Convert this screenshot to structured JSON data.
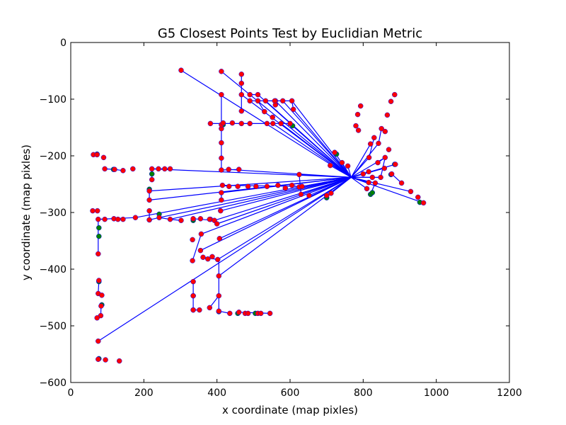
{
  "chart_data": {
    "type": "scatter",
    "title": "G5 Closest Points Test by Euclidian Metric",
    "xlabel": "x coordinate (map pixles)",
    "ylabel": "y coordinate (map pixles)",
    "xlim": [
      0,
      1200
    ],
    "ylim": [
      -600,
      0
    ],
    "xticks": [
      0,
      200,
      400,
      600,
      800,
      1000,
      1200
    ],
    "yticks": [
      0,
      -100,
      -200,
      -300,
      -400,
      -500,
      -600
    ],
    "xtick_labels": [
      "0",
      "200",
      "400",
      "600",
      "800",
      "1000",
      "1200"
    ],
    "ytick_labels": [
      "0",
      "−100",
      "−200",
      "−300",
      "−400",
      "−500",
      "−600"
    ],
    "grid": false,
    "hub": [
      767,
      -238
    ],
    "colors": {
      "line": "#0000ff",
      "red": "#ff0000",
      "green": "#008000",
      "edge": "#0000ff"
    },
    "series": [
      {
        "values": [
          [
            62,
            -198
          ],
          [
            72,
            -198
          ],
          [
            90,
            -203
          ],
          [
            93,
            -223
          ],
          [
            120,
            -224
          ],
          [
            143,
            -226
          ],
          [
            170,
            -223
          ],
          [
            222,
            -223
          ],
          [
            240,
            -223
          ],
          [
            257,
            -223
          ],
          [
            272,
            -223
          ],
          [
            222,
            -242
          ],
          [
            215,
            -262
          ],
          [
            215,
            -278
          ],
          [
            215,
            -297
          ],
          [
            215,
            -313
          ],
          [
            242,
            -309
          ],
          [
            272,
            -312
          ],
          [
            302,
            -314
          ],
          [
            335,
            -311
          ],
          [
            355,
            -311
          ],
          [
            382,
            -312
          ],
          [
            393,
            -314
          ],
          [
            60,
            -297
          ],
          [
            73,
            -297
          ],
          [
            75,
            -312
          ],
          [
            93,
            -312
          ],
          [
            118,
            -311
          ],
          [
            129,
            -312
          ],
          [
            143,
            -312
          ],
          [
            177,
            -309
          ],
          [
            75,
            -373
          ],
          [
            77,
            -420
          ],
          [
            75,
            -443
          ],
          [
            85,
            -446
          ],
          [
            83,
            -465
          ],
          [
            82,
            -482
          ],
          [
            72,
            -486
          ],
          [
            75,
            -527
          ],
          [
            75,
            -559
          ],
          [
            95,
            -560
          ],
          [
            133,
            -562
          ],
          [
            302,
            -49
          ],
          [
            412,
            -51
          ],
          [
            467,
            -56
          ],
          [
            467,
            -72
          ],
          [
            412,
            -92
          ],
          [
            467,
            -92
          ],
          [
            490,
            -92
          ],
          [
            512,
            -92
          ],
          [
            490,
            -103
          ],
          [
            512,
            -103
          ],
          [
            533,
            -103
          ],
          [
            560,
            -103
          ],
          [
            580,
            -103
          ],
          [
            605,
            -103
          ],
          [
            609,
            -118
          ],
          [
            530,
            -122
          ],
          [
            467,
            -121
          ],
          [
            412,
            -152
          ],
          [
            412,
            -145
          ],
          [
            412,
            -177
          ],
          [
            412,
            -204
          ],
          [
            412,
            -225
          ],
          [
            432,
            -224
          ],
          [
            460,
            -224
          ],
          [
            382,
            -143
          ],
          [
            417,
            -142
          ],
          [
            442,
            -142
          ],
          [
            467,
            -143
          ],
          [
            490,
            -143
          ],
          [
            537,
            -143
          ],
          [
            553,
            -143
          ],
          [
            575,
            -143
          ],
          [
            600,
            -143
          ],
          [
            415,
            -252
          ],
          [
            433,
            -254
          ],
          [
            457,
            -254
          ],
          [
            485,
            -254
          ],
          [
            507,
            -254
          ],
          [
            537,
            -254
          ],
          [
            567,
            -252
          ],
          [
            587,
            -257
          ],
          [
            605,
            -252
          ],
          [
            625,
            -255
          ],
          [
            633,
            -254
          ],
          [
            625,
            -233
          ],
          [
            630,
            -268
          ],
          [
            652,
            -270
          ],
          [
            700,
            -270
          ],
          [
            712,
            -266
          ],
          [
            412,
            -265
          ],
          [
            412,
            -278
          ],
          [
            410,
            -297
          ],
          [
            380,
            -312
          ],
          [
            400,
            -320
          ],
          [
            357,
            -338
          ],
          [
            333,
            -348
          ],
          [
            355,
            -367
          ],
          [
            407,
            -346
          ],
          [
            362,
            -379
          ],
          [
            375,
            -382
          ],
          [
            387,
            -378
          ],
          [
            402,
            -383
          ],
          [
            405,
            -412
          ],
          [
            333,
            -385
          ],
          [
            335,
            -422
          ],
          [
            335,
            -447
          ],
          [
            335,
            -472
          ],
          [
            352,
            -472
          ],
          [
            380,
            -468
          ],
          [
            405,
            -447
          ],
          [
            405,
            -474
          ],
          [
            435,
            -478
          ],
          [
            460,
            -476
          ],
          [
            477,
            -478
          ],
          [
            485,
            -478
          ],
          [
            512,
            -478
          ],
          [
            520,
            -478
          ],
          [
            545,
            -478
          ],
          [
            785,
            -127
          ],
          [
            793,
            -112
          ],
          [
            780,
            -147
          ],
          [
            787,
            -155
          ],
          [
            552,
            -132
          ],
          [
            560,
            -110
          ],
          [
            558,
            -103
          ],
          [
            722,
            -194
          ],
          [
            710,
            -217
          ],
          [
            742,
            -212
          ],
          [
            758,
            -218
          ],
          [
            800,
            -232
          ],
          [
            810,
            -258
          ],
          [
            815,
            -247
          ],
          [
            825,
            -238
          ],
          [
            833,
            -248
          ],
          [
            815,
            -228
          ],
          [
            816,
            -203
          ],
          [
            820,
            -179
          ],
          [
            830,
            -168
          ],
          [
            842,
            -178
          ],
          [
            850,
            -152
          ],
          [
            860,
            -157
          ],
          [
            866,
            -128
          ],
          [
            876,
            -104
          ],
          [
            886,
            -92
          ],
          [
            870,
            -189
          ],
          [
            858,
            -222
          ],
          [
            848,
            -238
          ],
          [
            878,
            -232
          ],
          [
            888,
            -215
          ],
          [
            905,
            -248
          ],
          [
            930,
            -263
          ],
          [
            950,
            -273
          ],
          [
            965,
            -283
          ],
          [
            840,
            -212
          ],
          [
            860,
            -203
          ]
        ]
      },
      {
        "values": [
          [
            72,
            -197
          ],
          [
            117,
            -224
          ],
          [
            215,
            -259
          ],
          [
            222,
            -232
          ],
          [
            242,
            -303
          ],
          [
            215,
            -313
          ],
          [
            335,
            -314
          ],
          [
            77,
            -327
          ],
          [
            77,
            -342
          ],
          [
            77,
            -422
          ],
          [
            85,
            -463
          ],
          [
            77,
            -558
          ],
          [
            417,
            -145
          ],
          [
            607,
            -147
          ],
          [
            405,
            -475
          ],
          [
            335,
            -472
          ],
          [
            335,
            -447
          ],
          [
            457,
            -478
          ],
          [
            505,
            -478
          ],
          [
            820,
            -268
          ],
          [
            825,
            -265
          ],
          [
            876,
            -233
          ],
          [
            886,
            -215
          ],
          [
            955,
            -282
          ],
          [
            700,
            -274
          ],
          [
            727,
            -197
          ]
        ]
      }
    ],
    "line_segments": [
      [
        [
          62,
          -198
        ],
        [
          72,
          -198
        ]
      ],
      [
        [
          93,
          -223
        ],
        [
          120,
          -224
        ]
      ],
      [
        [
          120,
          -224
        ],
        [
          143,
          -226
        ]
      ],
      [
        [
          222,
          -223
        ],
        [
          240,
          -223
        ]
      ],
      [
        [
          240,
          -223
        ],
        [
          272,
          -223
        ]
      ],
      [
        [
          222,
          -223
        ],
        [
          222,
          -242
        ]
      ],
      [
        [
          215,
          -262
        ],
        [
          215,
          -278
        ]
      ],
      [
        [
          215,
          -297
        ],
        [
          215,
          -313
        ]
      ],
      [
        [
          215,
          -313
        ],
        [
          242,
          -309
        ]
      ],
      [
        [
          242,
          -309
        ],
        [
          272,
          -312
        ]
      ],
      [
        [
          272,
          -312
        ],
        [
          302,
          -314
        ]
      ],
      [
        [
          335,
          -311
        ],
        [
          393,
          -314
        ]
      ],
      [
        [
          60,
          -297
        ],
        [
          73,
          -297
        ]
      ],
      [
        [
          75,
          -312
        ],
        [
          177,
          -309
        ]
      ],
      [
        [
          75,
          -312
        ],
        [
          75,
          -373
        ]
      ],
      [
        [
          77,
          -420
        ],
        [
          75,
          -443
        ]
      ],
      [
        [
          75,
          -443
        ],
        [
          85,
          -446
        ]
      ],
      [
        [
          83,
          -465
        ],
        [
          82,
          -482
        ]
      ],
      [
        [
          82,
          -482
        ],
        [
          72,
          -486
        ]
      ],
      [
        [
          412,
          -92
        ],
        [
          412,
          -152
        ]
      ],
      [
        [
          412,
          -152
        ],
        [
          412,
          -225
        ]
      ],
      [
        [
          412,
          -225
        ],
        [
          460,
          -224
        ]
      ],
      [
        [
          382,
          -143
        ],
        [
          600,
          -143
        ]
      ],
      [
        [
          467,
          -56
        ],
        [
          467,
          -72
        ]
      ],
      [
        [
          467,
          -72
        ],
        [
          467,
          -121
        ]
      ],
      [
        [
          490,
          -92
        ],
        [
          512,
          -92
        ]
      ],
      [
        [
          490,
          -103
        ],
        [
          605,
          -103
        ]
      ],
      [
        [
          605,
          -103
        ],
        [
          609,
          -118
        ]
      ],
      [
        [
          512,
          -103
        ],
        [
          530,
          -122
        ]
      ],
      [
        [
          415,
          -252
        ],
        [
          633,
          -254
        ]
      ],
      [
        [
          412,
          -265
        ],
        [
          412,
          -278
        ]
      ],
      [
        [
          335,
          -422
        ],
        [
          335,
          -472
        ]
      ],
      [
        [
          335,
          -472
        ],
        [
          352,
          -472
        ]
      ],
      [
        [
          405,
          -383
        ],
        [
          405,
          -474
        ]
      ],
      [
        [
          405,
          -474
        ],
        [
          435,
          -478
        ]
      ],
      [
        [
          460,
          -476
        ],
        [
          545,
          -478
        ]
      ],
      [
        [
          380,
          -468
        ],
        [
          405,
          -447
        ]
      ],
      [
        [
          333,
          -385
        ],
        [
          357,
          -338
        ]
      ],
      [
        [
          362,
          -379
        ],
        [
          402,
          -383
        ]
      ],
      [
        [
          820,
          -268
        ],
        [
          833,
          -248
        ]
      ],
      [
        [
          816,
          -203
        ],
        [
          830,
          -168
        ]
      ],
      [
        [
          842,
          -178
        ],
        [
          850,
          -152
        ]
      ],
      [
        [
          840,
          -212
        ],
        [
          860,
          -203
        ]
      ],
      [
        [
          860,
          -203
        ],
        [
          848,
          -238
        ]
      ],
      [
        [
          878,
          -232
        ],
        [
          905,
          -248
        ]
      ],
      [
        [
          700,
          -270
        ],
        [
          712,
          -266
        ]
      ],
      [
        [
          625,
          -255
        ],
        [
          605,
          -252
        ]
      ],
      [
        [
          625,
          -233
        ],
        [
          630,
          -268
        ]
      ]
    ],
    "hub_links": [
      [
        302,
        -49
      ],
      [
        412,
        -51
      ],
      [
        467,
        -92
      ],
      [
        512,
        -92
      ],
      [
        533,
        -103
      ],
      [
        560,
        -103
      ],
      [
        580,
        -103
      ],
      [
        605,
        -103
      ],
      [
        609,
        -118
      ],
      [
        553,
        -143
      ],
      [
        575,
        -143
      ],
      [
        600,
        -143
      ],
      [
        220,
        -223
      ],
      [
        432,
        -224
      ],
      [
        215,
        -262
      ],
      [
        215,
        -278
      ],
      [
        412,
        -265
      ],
      [
        625,
        -255
      ],
      [
        630,
        -268
      ],
      [
        652,
        -270
      ],
      [
        700,
        -270
      ],
      [
        712,
        -266
      ],
      [
        242,
        -309
      ],
      [
        272,
        -312
      ],
      [
        393,
        -314
      ],
      [
        177,
        -309
      ],
      [
        410,
        -297
      ],
      [
        400,
        -320
      ],
      [
        357,
        -338
      ],
      [
        355,
        -367
      ],
      [
        407,
        -346
      ],
      [
        402,
        -383
      ],
      [
        405,
        -412
      ],
      [
        75,
        -527
      ],
      [
        722,
        -194
      ],
      [
        710,
        -217
      ],
      [
        742,
        -212
      ],
      [
        758,
        -218
      ],
      [
        800,
        -232
      ],
      [
        810,
        -258
      ],
      [
        815,
        -247
      ],
      [
        825,
        -238
      ],
      [
        833,
        -248
      ],
      [
        815,
        -228
      ],
      [
        816,
        -203
      ],
      [
        820,
        -179
      ],
      [
        842,
        -178
      ],
      [
        860,
        -203
      ],
      [
        858,
        -222
      ],
      [
        848,
        -238
      ],
      [
        888,
        -215
      ],
      [
        930,
        -263
      ],
      [
        960,
        -282
      ],
      [
        625,
        -233
      ]
    ]
  }
}
